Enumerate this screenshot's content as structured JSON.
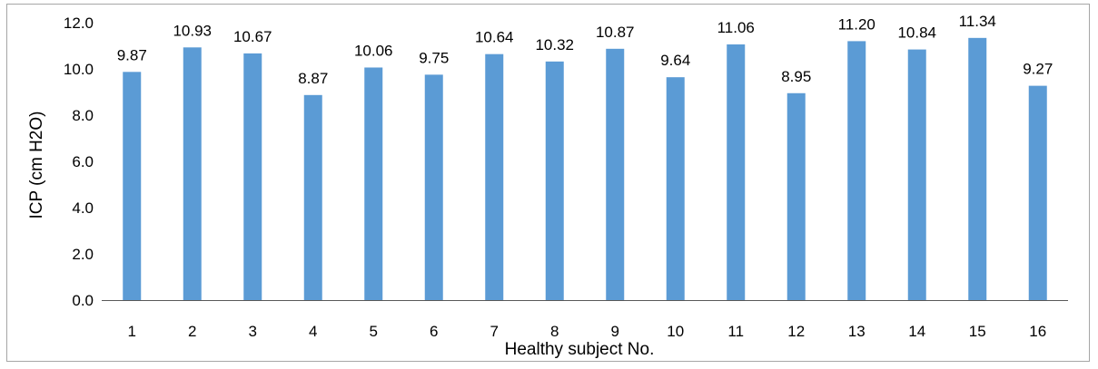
{
  "chart_data": {
    "type": "bar",
    "title": "",
    "xlabel": "Healthy subject No.",
    "ylabel": "ICP (cm H2O)",
    "ylim": [
      0,
      12
    ],
    "yticks": [
      "0.0",
      "2.0",
      "4.0",
      "6.0",
      "8.0",
      "10.0",
      "12.0"
    ],
    "ytick_values": [
      0,
      2,
      4,
      6,
      8,
      10,
      12
    ],
    "grid": false,
    "legend": "none",
    "categories": [
      "1",
      "2",
      "3",
      "4",
      "5",
      "6",
      "7",
      "8",
      "9",
      "10",
      "11",
      "12",
      "13",
      "14",
      "15",
      "16"
    ],
    "values": [
      9.87,
      10.93,
      10.67,
      8.87,
      10.06,
      9.75,
      10.64,
      10.32,
      10.87,
      9.64,
      11.06,
      8.95,
      11.2,
      10.84,
      11.34,
      9.27
    ],
    "value_labels": [
      "9.87",
      "10.93",
      "10.67",
      "8.87",
      "10.06",
      "9.75",
      "10.64",
      "10.32",
      "10.87",
      "9.64",
      "11.06",
      "8.95",
      "11.20",
      "10.84",
      "11.34",
      "9.27"
    ],
    "bar_color": "#5b9bd5",
    "axis_color": "#595959"
  }
}
